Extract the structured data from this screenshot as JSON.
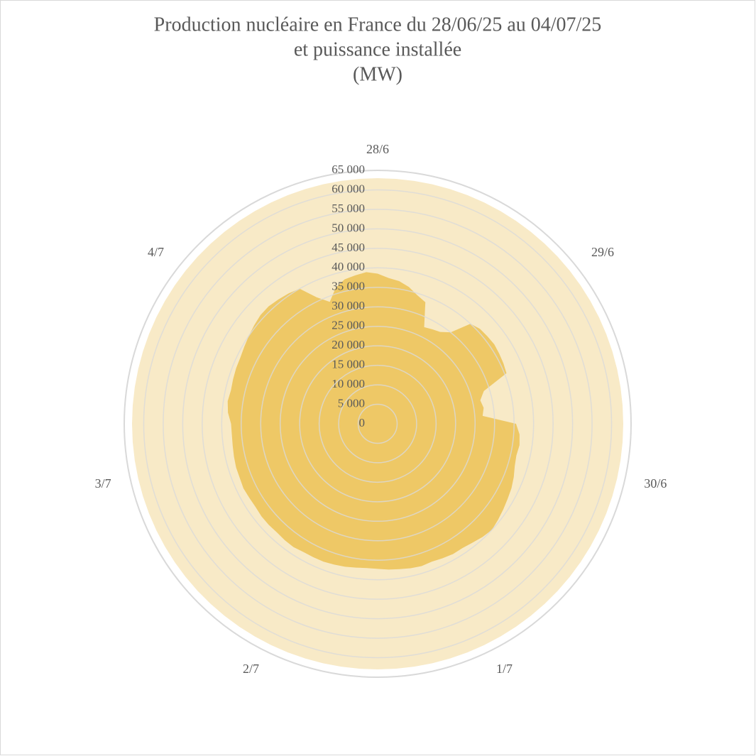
{
  "chart_data": {
    "type": "radar",
    "title": [
      "Production nucléaire en France du 28/06/25 au 04/07/25",
      "et puissance installée",
      "(MW)"
    ],
    "categories": [
      "28/6",
      null,
      null,
      null,
      null,
      null,
      null,
      null,
      null,
      null,
      null,
      null,
      "29/6",
      null,
      null,
      null,
      null,
      null,
      null,
      null,
      null,
      null,
      null,
      null,
      "30/6",
      null,
      null,
      null,
      null,
      null,
      null,
      null,
      null,
      null,
      null,
      null,
      "1/7",
      null,
      null,
      null,
      null,
      null,
      null,
      null,
      null,
      null,
      null,
      null,
      "2/7",
      null,
      null,
      null,
      null,
      null,
      null,
      null,
      null,
      null,
      null,
      null,
      "3/7",
      null,
      null,
      null,
      null,
      null,
      null,
      null,
      null,
      null,
      null,
      null,
      "4/7",
      null,
      null,
      null,
      null,
      null,
      null,
      null,
      null,
      null,
      null,
      null
    ],
    "series": [
      {
        "color": "#f8eac7",
        "values": [
          63000,
          63000,
          63000,
          63000,
          63000,
          63000,
          63000,
          63000,
          63000,
          63000,
          63000,
          63000,
          63000,
          63000,
          63000,
          63000,
          63000,
          63000,
          63000,
          63000,
          63000,
          63000,
          63000,
          63000,
          63000,
          63000,
          63000,
          63000,
          63000,
          63000,
          63000,
          63000,
          63000,
          63000,
          63000,
          63000,
          63000,
          63000,
          63000,
          63000,
          63000,
          63000,
          63000,
          63000,
          63000,
          63000,
          63000,
          63000,
          63000,
          63000,
          63000,
          63000,
          63000,
          63000,
          63000,
          63000,
          63000,
          63000,
          63000,
          63000,
          63000,
          63000,
          63000,
          63000,
          63000,
          63000,
          63000,
          63000,
          63000,
          63000,
          63000,
          63000,
          63000,
          63000,
          63000,
          63000,
          63000,
          63000,
          63000,
          63000,
          63000,
          63000,
          63000,
          63000
        ]
      },
      {
        "color": "#eec866",
        "values": [
          38500,
          37500,
          37000,
          36000,
          34500,
          33500,
          27500,
          28000,
          28500,
          30000,
          35000,
          35800,
          36000,
          36200,
          36000,
          35800,
          35500,
          28500,
          27000,
          27500,
          27000,
          35500,
          36500,
          36800,
          36500,
          36800,
          37500,
          38100,
          38500,
          39000,
          39500,
          40000,
          39600,
          39000,
          38600,
          38600,
          38300,
          38000,
          38200,
          38000,
          37700,
          37500,
          37200,
          37100,
          37300,
          37600,
          37800,
          38000,
          38000,
          38000,
          38300,
          38200,
          38000,
          38100,
          38100,
          37900,
          38000,
          38200,
          38000,
          38000,
          37800,
          37600,
          37500,
          37600,
          38500,
          38900,
          38600,
          38800,
          39000,
          39100,
          39500,
          40000,
          40500,
          41000,
          41100,
          40800,
          40500,
          40000,
          36000,
          33600,
          36500,
          38000,
          38500,
          39000
        ]
      }
    ],
    "ylim": [
      0,
      65000
    ],
    "yticks": [
      0,
      {
        "value": 5000,
        "label": "5 000"
      },
      {
        "value": 10000,
        "label": "10 000"
      },
      {
        "value": 15000,
        "label": "15 000"
      },
      {
        "value": 20000,
        "label": "20 000"
      },
      {
        "value": 25000,
        "label": "25 000"
      },
      {
        "value": 30000,
        "label": "30 000"
      },
      {
        "value": 35000,
        "label": "35 000"
      },
      {
        "value": 40000,
        "label": "40 000"
      },
      {
        "value": 45000,
        "label": "45 000"
      },
      {
        "value": 50000,
        "label": "50 000"
      },
      {
        "value": 55000,
        "label": "55 000"
      },
      {
        "value": 60000,
        "label": "60 000"
      },
      {
        "value": 65000,
        "label": "65 000"
      }
    ],
    "grid": true
  }
}
